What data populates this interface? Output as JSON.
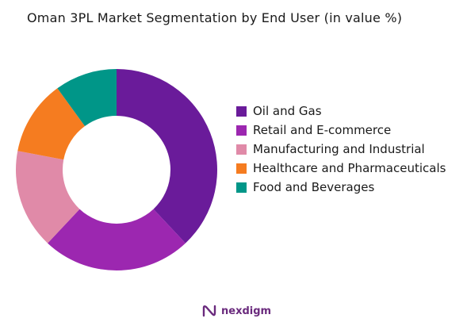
{
  "chart_data": {
    "type": "pie",
    "title": "Oman 3PL Market Segmentation by End User (in value %)",
    "categories": [
      "Oil and Gas",
      "Retail and E-commerce",
      "Manufacturing and Industrial",
      "Healthcare and Pharmaceuticals",
      "Food and Beverages"
    ],
    "values": [
      38,
      24,
      16,
      12,
      10
    ],
    "colors": [
      "#6a1b9a",
      "#9c27b0",
      "#e08aa8",
      "#f57c20",
      "#009688"
    ],
    "legend_position": "right",
    "donut": true
  },
  "brand": {
    "name": "nexdigm",
    "color": "#6a2a7d"
  }
}
